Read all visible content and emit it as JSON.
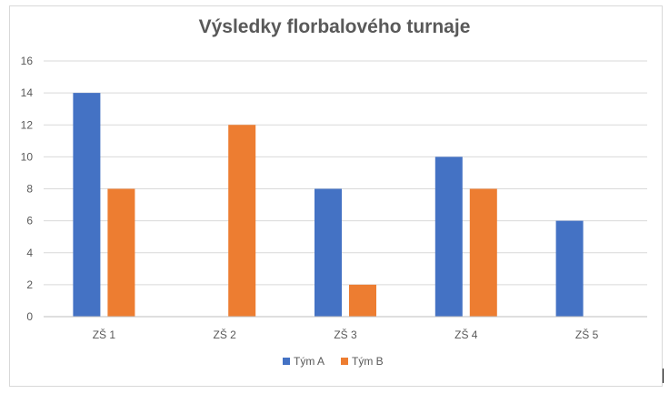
{
  "chart_data": {
    "type": "bar",
    "title": "Výsledky florbalového turnaje",
    "xlabel": "",
    "ylabel": "",
    "categories": [
      "ZŠ 1",
      "ZŠ 2",
      "ZŠ 3",
      "ZŠ 4",
      "ZŠ 5"
    ],
    "series": [
      {
        "name": "Tým A",
        "color": "#4472c4",
        "values": [
          14,
          0,
          8,
          10,
          6
        ]
      },
      {
        "name": "Tým B",
        "color": "#ed7d31",
        "values": [
          8,
          12,
          2,
          8,
          0
        ]
      }
    ],
    "ylim": [
      0,
      16
    ],
    "yticks": [
      0,
      2,
      4,
      6,
      8,
      10,
      12,
      14,
      16
    ],
    "grid": true,
    "legend_position": "bottom"
  }
}
